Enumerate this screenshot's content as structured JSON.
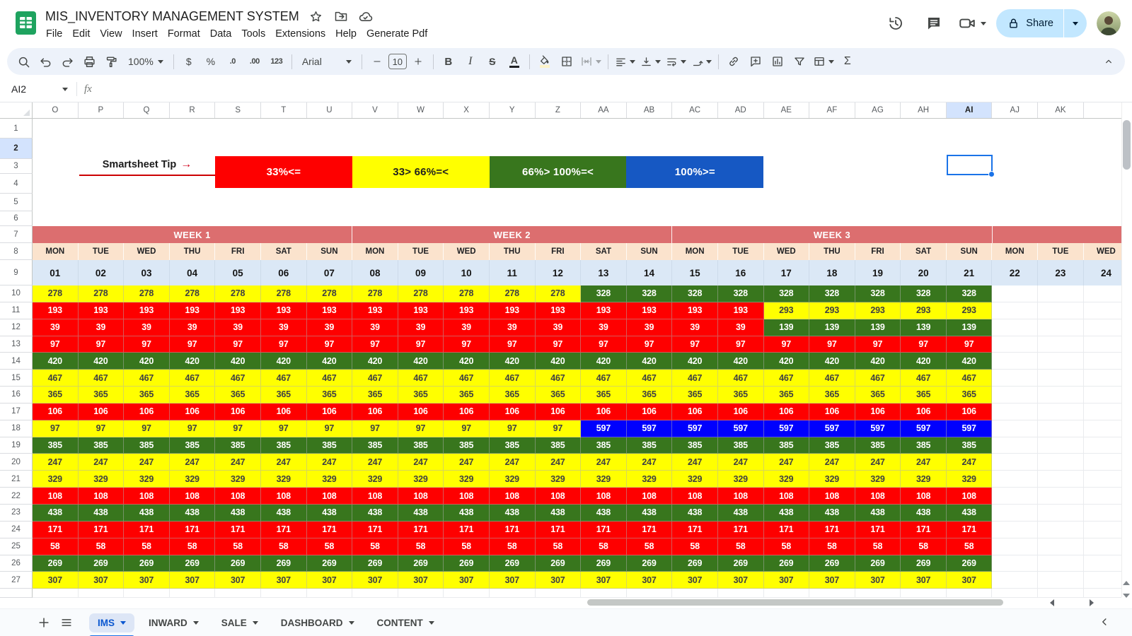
{
  "app": {
    "doc_title": "MIS_INVENTORY MANAGEMENT SYSTEM",
    "menu": [
      "File",
      "Edit",
      "View",
      "Insert",
      "Format",
      "Data",
      "Tools",
      "Extensions",
      "Help",
      "Generate Pdf"
    ],
    "share_label": "Share"
  },
  "toolbar": {
    "zoom": "100%",
    "font_family_value": "Arial",
    "font_size_value": "10",
    "labels": {
      "dollar": "$",
      "percent": "%",
      "dec_decrease": ".0",
      "dec_increase": ".00",
      "more_formats": "123",
      "bold": "B",
      "italic": "I",
      "strikethrough": "S",
      "text_color": "A",
      "functions": "Σ"
    }
  },
  "formula_bar": {
    "name_box": "AI2",
    "fx": "fx",
    "value": ""
  },
  "colors": {
    "red": "#fe0000",
    "yellow": "#ffff00",
    "green": "#38761d",
    "blue": "#0000fe",
    "legend_blue": "#1658c3",
    "week_header": "#dc6e6f",
    "day_header": "#fbe3cd",
    "date_row": "#dbe8f6",
    "selection_highlight": "#d3e3fd",
    "accent_blue": "#1a73e8",
    "tip_red": "#cc0001"
  },
  "legend": {
    "tip_text": "Smartsheet Tip",
    "tip_arrow": "→",
    "items": [
      {
        "label": "33%<=",
        "bg": "#fe0000",
        "fg": "#ffffff"
      },
      {
        "label": "33> 66%=<",
        "bg": "#ffff00",
        "fg": "#1f1f1f"
      },
      {
        "label": "66%> 100%=<",
        "bg": "#38761d",
        "fg": "#ffffff"
      },
      {
        "label": "100%>=",
        "bg": "#1658c3",
        "fg": "#ffffff"
      }
    ]
  },
  "grid": {
    "selected_cell": "AI2",
    "selected_column": "AI",
    "selected_row": "2",
    "columns": [
      "O",
      "P",
      "Q",
      "R",
      "S",
      "T",
      "U",
      "V",
      "W",
      "X",
      "Y",
      "Z",
      "AA",
      "AB",
      "AC",
      "AD",
      "AE",
      "AF",
      "AG",
      "AH",
      "AI",
      "AJ",
      "AK",
      ""
    ],
    "row_numbers": [
      "1",
      "2",
      "3",
      "4",
      "5",
      "6",
      "7",
      "8",
      "9",
      "10",
      "11",
      "12",
      "13",
      "14",
      "15",
      "16",
      "17",
      "18",
      "19",
      "20",
      "21",
      "22",
      "23",
      "24",
      "25",
      "26",
      "27"
    ],
    "weeks": [
      {
        "label": "WEEK 1",
        "span": 7
      },
      {
        "label": "WEEK 2",
        "span": 7
      },
      {
        "label": "WEEK 3",
        "span": 7
      },
      {
        "label": "",
        "span": 3
      }
    ],
    "days": [
      "MON",
      "TUE",
      "WED",
      "THU",
      "FRI",
      "SAT",
      "SUN",
      "MON",
      "TUE",
      "WED",
      "THU",
      "FRI",
      "SAT",
      "SUN",
      "MON",
      "TUE",
      "WED",
      "THU",
      "FRI",
      "SAT",
      "SUN",
      "MON",
      "TUE",
      "WED"
    ],
    "dates": [
      "01",
      "02",
      "03",
      "04",
      "05",
      "06",
      "07",
      "08",
      "09",
      "10",
      "11",
      "12",
      "13",
      "14",
      "15",
      "16",
      "17",
      "18",
      "19",
      "20",
      "21",
      "22",
      "23",
      "24"
    ],
    "data_rows": [
      {
        "row": "10",
        "segments": [
          {
            "value": "278",
            "color": "yellow",
            "count": 12
          },
          {
            "value": "328",
            "color": "green",
            "count": 9
          }
        ]
      },
      {
        "row": "11",
        "segments": [
          {
            "value": "193",
            "color": "red",
            "count": 16
          },
          {
            "value": "293",
            "color": "yellow",
            "count": 5
          }
        ]
      },
      {
        "row": "12",
        "segments": [
          {
            "value": "39",
            "color": "red",
            "count": 16
          },
          {
            "value": "139",
            "color": "green",
            "count": 5
          }
        ]
      },
      {
        "row": "13",
        "segments": [
          {
            "value": "97",
            "color": "red",
            "count": 21
          }
        ]
      },
      {
        "row": "14",
        "segments": [
          {
            "value": "420",
            "color": "green",
            "count": 21
          }
        ]
      },
      {
        "row": "15",
        "segments": [
          {
            "value": "467",
            "color": "yellow",
            "count": 21
          }
        ]
      },
      {
        "row": "16",
        "segments": [
          {
            "value": "365",
            "color": "yellow",
            "count": 21
          }
        ]
      },
      {
        "row": "17",
        "segments": [
          {
            "value": "106",
            "color": "red",
            "count": 21
          }
        ]
      },
      {
        "row": "18",
        "segments": [
          {
            "value": "97",
            "color": "yellow",
            "count": 12
          },
          {
            "value": "597",
            "color": "blue",
            "count": 9
          }
        ]
      },
      {
        "row": "19",
        "segments": [
          {
            "value": "385",
            "color": "green",
            "count": 21
          }
        ]
      },
      {
        "row": "20",
        "segments": [
          {
            "value": "247",
            "color": "yellow",
            "count": 21
          }
        ]
      },
      {
        "row": "21",
        "segments": [
          {
            "value": "329",
            "color": "yellow",
            "count": 21
          }
        ]
      },
      {
        "row": "22",
        "segments": [
          {
            "value": "108",
            "color": "red",
            "count": 21
          }
        ]
      },
      {
        "row": "23",
        "segments": [
          {
            "value": "438",
            "color": "green",
            "count": 21
          }
        ]
      },
      {
        "row": "24",
        "segments": [
          {
            "value": "171",
            "color": "red",
            "count": 21
          }
        ]
      },
      {
        "row": "25",
        "segments": [
          {
            "value": "58",
            "color": "red",
            "count": 21
          }
        ]
      },
      {
        "row": "26",
        "segments": [
          {
            "value": "269",
            "color": "green",
            "count": 21
          }
        ]
      },
      {
        "row": "27",
        "segments": [
          {
            "value": "307",
            "color": "yellow",
            "count": 21
          }
        ]
      }
    ]
  },
  "sheet_tabs": {
    "active": "IMS",
    "tabs": [
      "IMS",
      "INWARD",
      "SALE",
      "DASHBOARD",
      "CONTENT"
    ]
  }
}
